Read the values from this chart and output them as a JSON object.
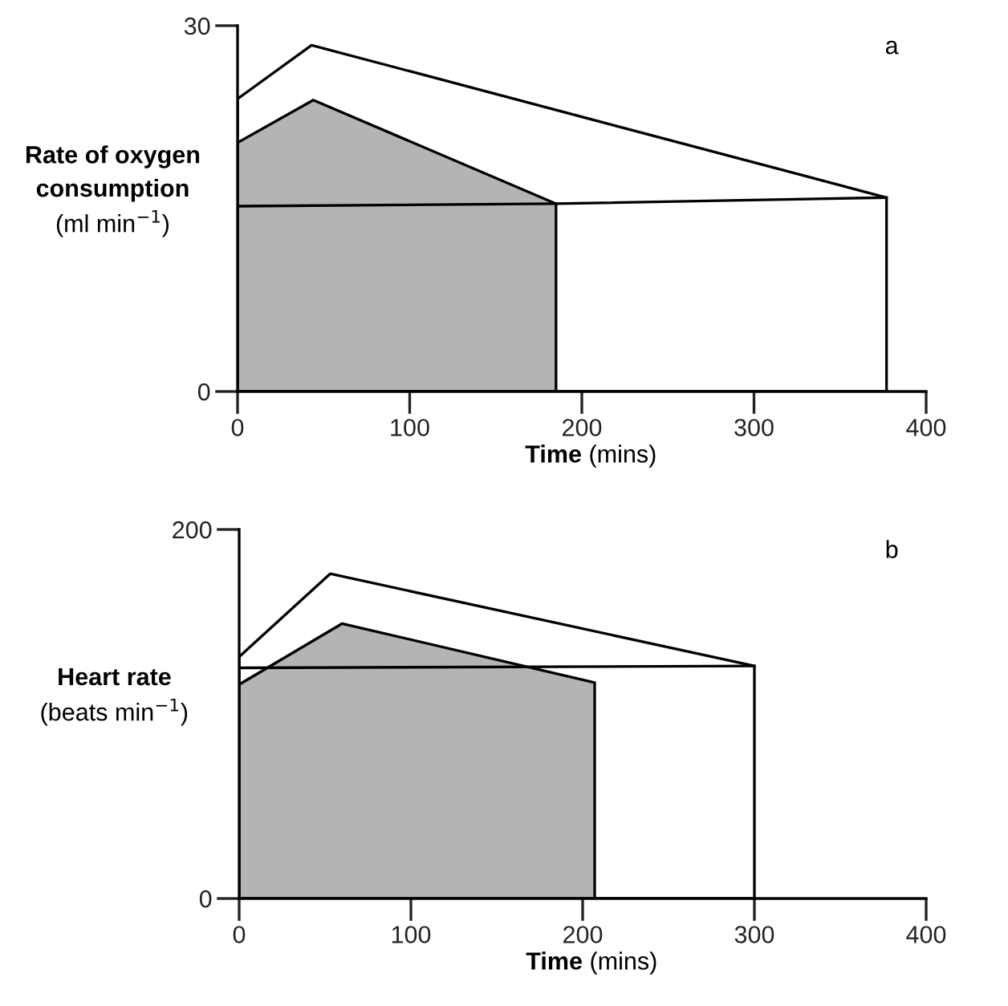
{
  "chart_data": [
    {
      "type": "area",
      "xlabel": "Time (mins)",
      "ylabel": "Rate of oxygen\nconsumption\n(ml min$^{−1}$)",
      "annotations": [
        "a"
      ],
      "xlim": [
        0,
        400
      ],
      "ylim": [
        0,
        30
      ],
      "xticks": [
        0,
        100,
        200,
        300,
        400
      ],
      "yticks": [
        0,
        30
      ],
      "grid": false,
      "legend": false,
      "series": [
        {
          "color": "#ffffff",
          "x": [
            0,
            43,
            377
          ],
          "values": [
            24.0,
            28.4,
            15.9
          ]
        },
        {
          "color": "#b4b4b4",
          "x": [
            0,
            44,
            185
          ],
          "values": [
            20.4,
            23.9,
            15.4
          ]
        },
        {
          "type": "line",
          "color": "#000000",
          "x": [
            0,
            185,
            377
          ],
          "values": [
            15.2,
            15.4,
            15.9
          ]
        }
      ]
    },
    {
      "type": "area",
      "xlabel": "Time (mins)",
      "ylabel": "Heart rate\n(beats min$^{−1}$)",
      "annotations": [
        "b"
      ],
      "xlim": [
        0,
        400
      ],
      "ylim": [
        0,
        200
      ],
      "xticks": [
        0,
        100,
        200,
        300,
        400
      ],
      "yticks": [
        0,
        200
      ],
      "grid": false,
      "legend": false,
      "series": [
        {
          "color": "#ffffff",
          "x": [
            0,
            53,
            300
          ],
          "values": [
            131,
            176,
            126
          ]
        },
        {
          "type": "line",
          "color": "#000000",
          "x": [
            0,
            300
          ],
          "values": [
            125,
            126
          ]
        },
        {
          "color": "#b4b4b4",
          "x": [
            0,
            60,
            207
          ],
          "values": [
            116,
            149,
            117
          ]
        }
      ]
    }
  ]
}
